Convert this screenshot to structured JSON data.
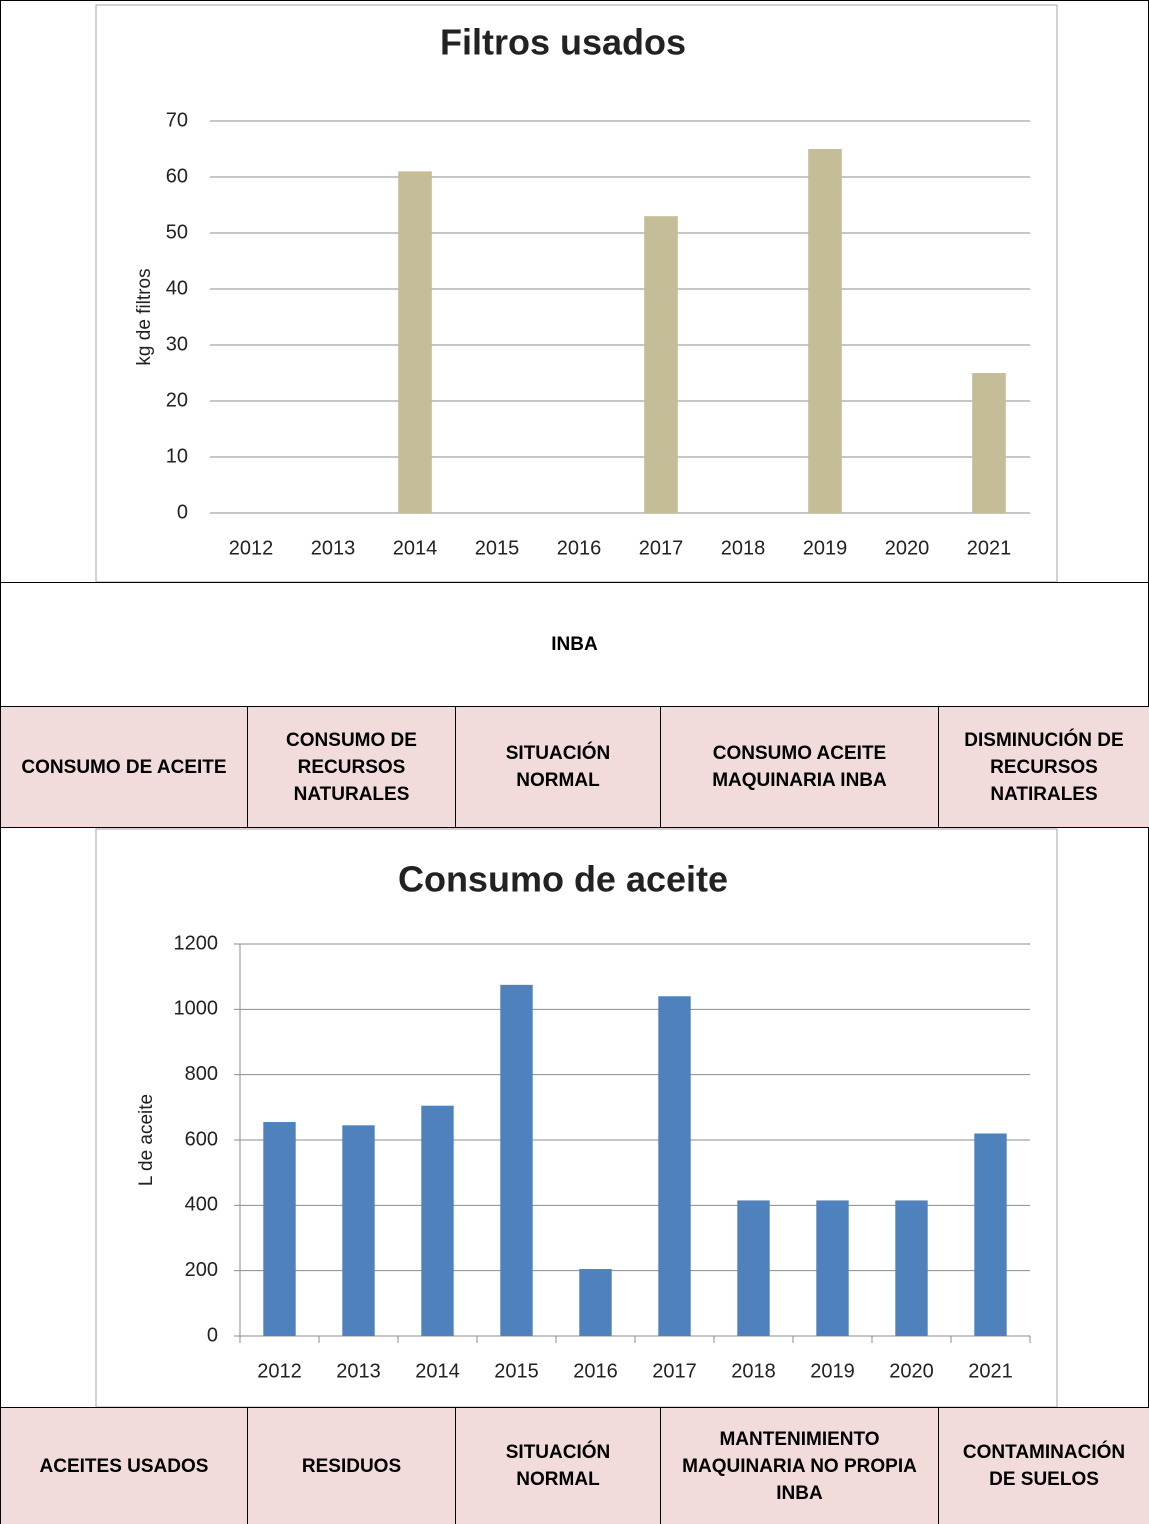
{
  "chart_data": [
    {
      "type": "bar",
      "title": "Filtros usados",
      "y_label": "kg de filtros",
      "categories": [
        "2012",
        "2013",
        "2014",
        "2015",
        "2016",
        "2017",
        "2018",
        "2019",
        "2020",
        "2021"
      ],
      "values": [
        null,
        null,
        61,
        null,
        null,
        53,
        null,
        65,
        null,
        25
      ],
      "color": "#c4bd97",
      "ylim": [
        0,
        70
      ],
      "yticks": [
        0,
        10,
        20,
        30,
        40,
        50,
        60,
        70
      ],
      "grid": true,
      "axis_ticks": false
    },
    {
      "type": "bar",
      "title": "Consumo de aceite",
      "y_label": "L de aceite",
      "categories": [
        "2012",
        "2013",
        "2014",
        "2015",
        "2016",
        "2017",
        "2018",
        "2019",
        "2020",
        "2021"
      ],
      "values": [
        655,
        645,
        705,
        1075,
        205,
        1040,
        415,
        415,
        415,
        620
      ],
      "color": "#4f81bd",
      "ylim": [
        0,
        1200
      ],
      "yticks": [
        0,
        200,
        400,
        600,
        800,
        1000,
        1200
      ],
      "grid": true,
      "axis_ticks": true
    }
  ],
  "table": {
    "header": "INBA",
    "rows": [
      [
        "CONSUMO DE ACEITE",
        "CONSUMO DE RECURSOS NATURALES",
        "SITUACIÓN NORMAL",
        "CONSUMO ACEITE MAQUINARIA INBA",
        "DISMINUCIÓN DE RECURSOS NATIRALES"
      ],
      [
        "ACEITES USADOS",
        "RESIDUOS",
        "SITUACIÓN NORMAL",
        "MANTENIMIENTO MAQUINARIA NO PROPIA INBA",
        "CONTAMINACIÓN DE SUELOS"
      ]
    ]
  }
}
